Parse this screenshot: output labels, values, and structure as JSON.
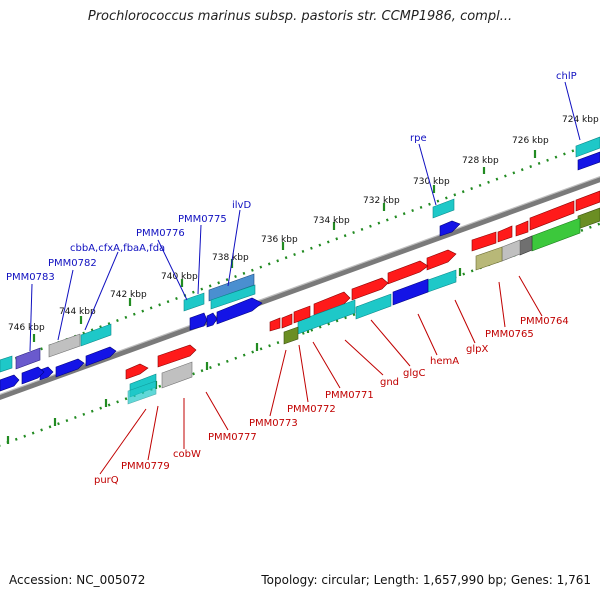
{
  "title": "Prochlorococcus marinus subsp. pastoris str. CCMP1986, compl...",
  "footer": {
    "accession": "Accession: NC_005072",
    "summary": "Topology: circular; Length: 1,657,990 bp; Genes: 1,761"
  },
  "colors": {
    "backbone": "#808080",
    "dots": "#228b22",
    "label_blue": "#1010c0",
    "label_red": "#c00000",
    "gene_red": "#ff1a1a",
    "gene_blue": "#1414e6",
    "gene_cyan": "#1ec8c8",
    "gene_gray": "#c0c0c0",
    "gene_purple": "#6a5acd",
    "gene_olive": "#b8b878",
    "gene_green": "#3cc83c"
  },
  "scale_ticks": [
    {
      "label": "724 kbp",
      "bp": 724
    },
    {
      "label": "726 kbp",
      "bp": 726
    },
    {
      "label": "728 kbp",
      "bp": 728
    },
    {
      "label": "730 kbp",
      "bp": 730
    },
    {
      "label": "732 kbp",
      "bp": 732
    },
    {
      "label": "734 kbp",
      "bp": 734
    },
    {
      "label": "736 kbp",
      "bp": 736
    },
    {
      "label": "738 kbp",
      "bp": 738
    },
    {
      "label": "740 kbp",
      "bp": 740
    },
    {
      "label": "742 kbp",
      "bp": 742
    },
    {
      "label": "744 kbp",
      "bp": 744
    },
    {
      "label": "746 kbp",
      "bp": 746
    }
  ],
  "labels_top": [
    "chlP",
    "rpe",
    "ilvD",
    "PMM0775",
    "PMM0776",
    "cbbA,cfxA,fbaA,fda",
    "PMM0782",
    "PMM0783"
  ],
  "labels_bottom": [
    "PMM0764",
    "PMM0765",
    "glpX",
    "hemA",
    "glgC",
    "gnd",
    "PMM0771",
    "PMM0772",
    "PMM0773",
    "PMM0777",
    "cobW",
    "PMM0779",
    "purQ"
  ]
}
